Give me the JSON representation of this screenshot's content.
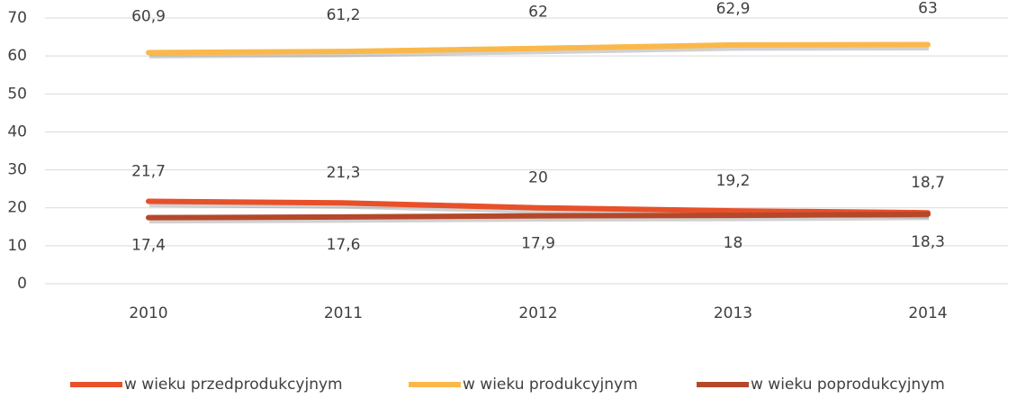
{
  "chart_data": {
    "type": "line",
    "categories": [
      "2010",
      "2011",
      "2012",
      "2013",
      "2014"
    ],
    "series": [
      {
        "name": "w wieku przedprodukcyjnym",
        "color": "#e8502a",
        "values": [
          21.7,
          21.3,
          20,
          19.2,
          18.7
        ],
        "value_labels": [
          "21,7",
          "21,3",
          "20",
          "19,2",
          "18,7"
        ]
      },
      {
        "name": "w wieku produkcyjnym",
        "color": "#fbb84a",
        "values": [
          60.9,
          61.2,
          62,
          62.9,
          63
        ],
        "value_labels": [
          "60,9",
          "61,2",
          "62",
          "62,9",
          "63"
        ]
      },
      {
        "name": "w wieku poprodukcyjnym",
        "color": "#b5482a",
        "values": [
          17.4,
          17.6,
          17.9,
          18,
          18.3
        ],
        "value_labels": [
          "17,4",
          "17,6",
          "17,9",
          "18",
          "18,3"
        ]
      }
    ],
    "ylim": [
      0,
      70
    ],
    "yticks": [
      0,
      10,
      20,
      30,
      40,
      50,
      60,
      70
    ],
    "grid": true,
    "legend": "bottom"
  }
}
